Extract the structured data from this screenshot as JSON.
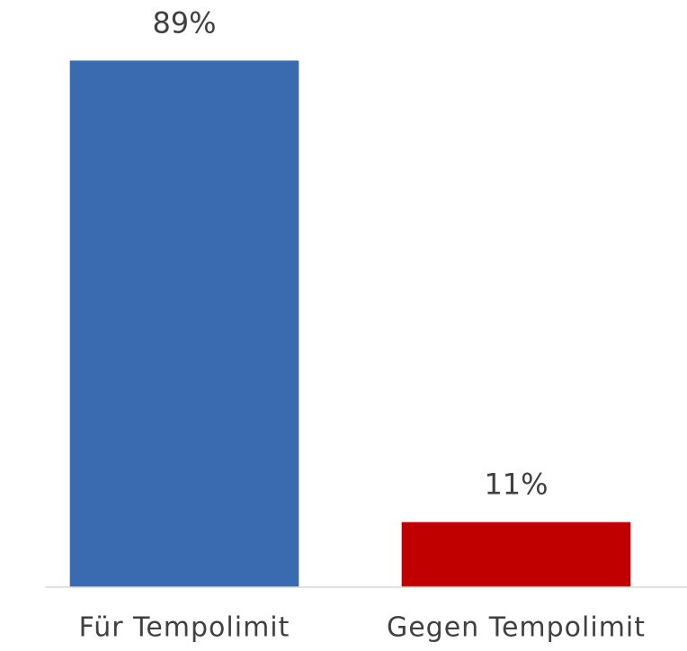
{
  "chart_data": {
    "type": "bar",
    "categories": [
      "Für Tempolimit",
      "Gegen Tempolimit"
    ],
    "values": [
      89,
      11
    ],
    "value_labels": [
      "89%",
      "11%"
    ],
    "colors": [
      "#3a6bb0",
      "#c00000"
    ],
    "ylim": [
      0,
      100
    ]
  }
}
